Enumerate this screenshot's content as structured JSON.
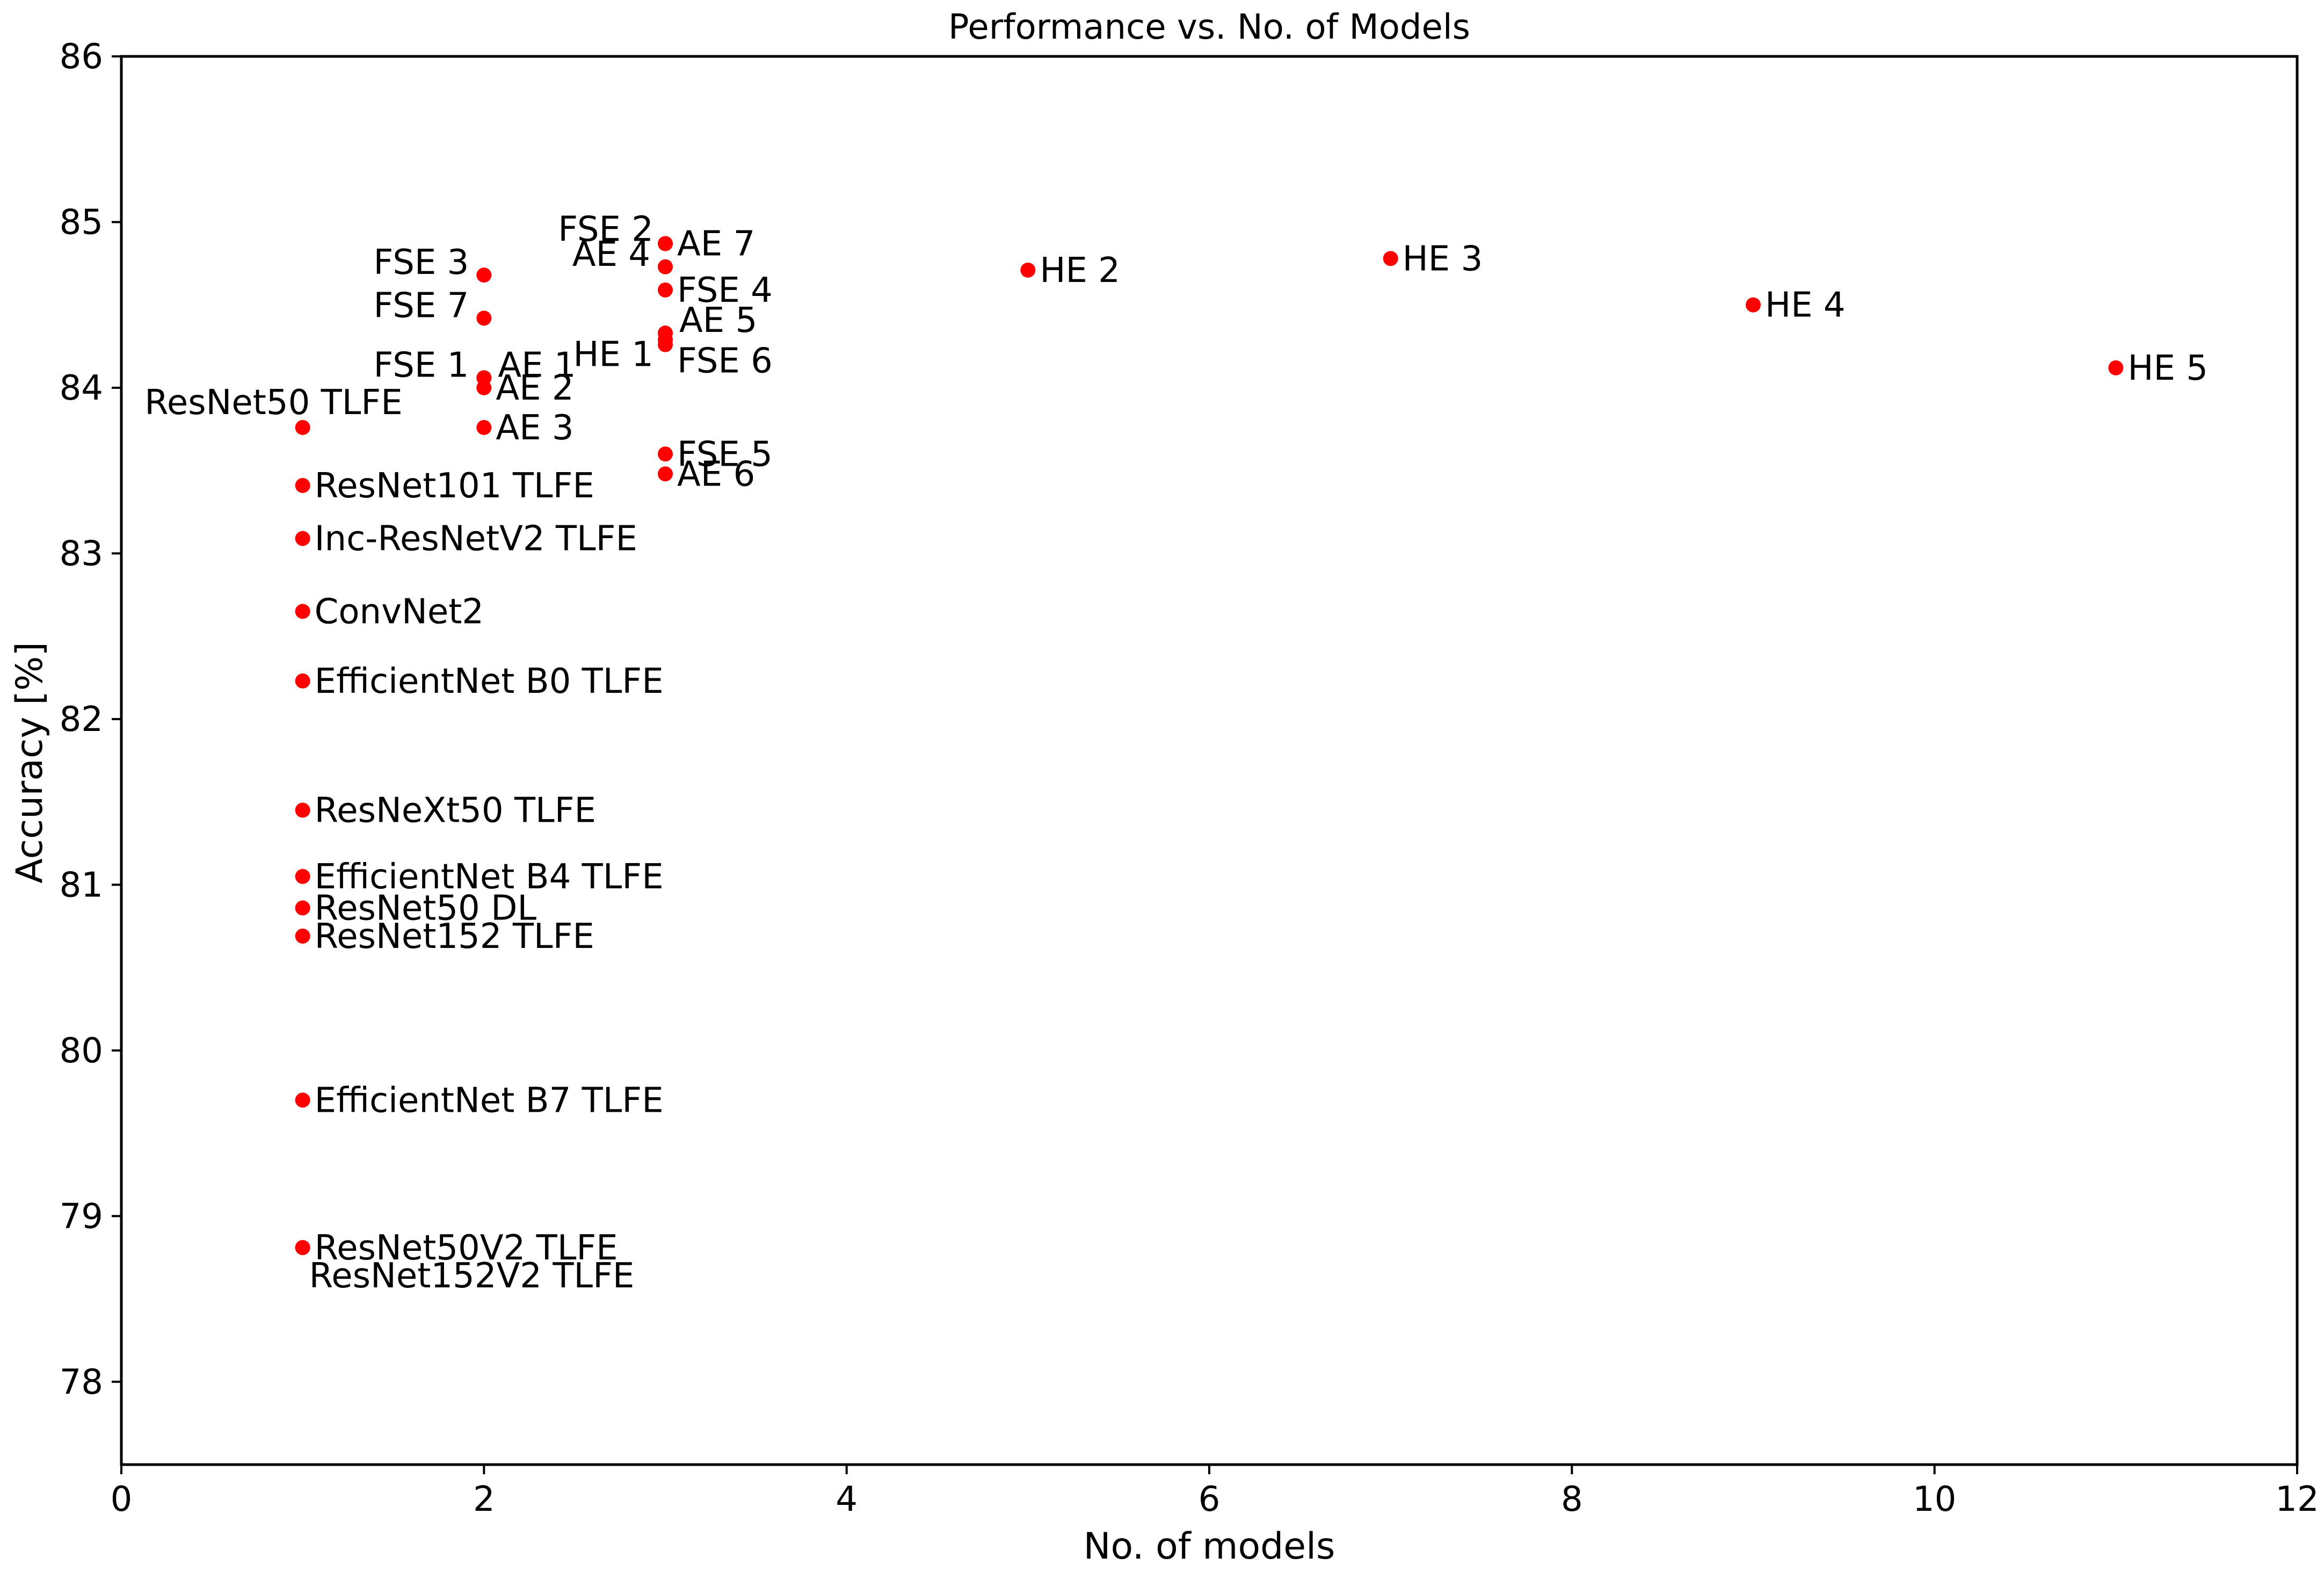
{
  "chart_data": {
    "type": "scatter",
    "title": "Performance vs. No. of Models",
    "xlabel": "No. of models",
    "ylabel": "Accuracy [%]",
    "xlim": [
      0,
      12
    ],
    "ylim": [
      77.5,
      86
    ],
    "xticks": [
      0,
      2,
      4,
      6,
      8,
      10,
      12
    ],
    "yticks": [
      78,
      79,
      80,
      81,
      82,
      83,
      84,
      85,
      86
    ],
    "grid": false,
    "marker_color": "#ff0000",
    "points": [
      {
        "label": "ResNet50 TLFE",
        "x": 1,
        "y": 83.76,
        "anchor": "left-above"
      },
      {
        "label": "ResNet101 TLFE",
        "x": 1,
        "y": 83.41,
        "anchor": "right"
      },
      {
        "label": "Inc-ResNetV2 TLFE",
        "x": 1,
        "y": 83.09,
        "anchor": "right"
      },
      {
        "label": "ConvNet2",
        "x": 1,
        "y": 82.65,
        "anchor": "right"
      },
      {
        "label": "EfficientNet B0 TLFE",
        "x": 1,
        "y": 82.23,
        "anchor": "right"
      },
      {
        "label": "ResNeXt50 TLFE",
        "x": 1,
        "y": 81.45,
        "anchor": "right"
      },
      {
        "label": "EfficientNet B4 TLFE",
        "x": 1,
        "y": 81.05,
        "anchor": "right"
      },
      {
        "label": "ResNet50 DL",
        "x": 1,
        "y": 80.86,
        "anchor": "right"
      },
      {
        "label": "ResNet152 TLFE",
        "x": 1,
        "y": 80.69,
        "anchor": "right"
      },
      {
        "label": "EfficientNet B7 TLFE",
        "x": 1,
        "y": 79.7,
        "anchor": "right"
      },
      {
        "label": "ResNet50V2 TLFE",
        "x": 1,
        "y": 78.81,
        "anchor": "right"
      },
      {
        "label": "ResNet152V2 TLFE",
        "x": 1,
        "y": 78.81,
        "anchor": "right-below"
      },
      {
        "label": "FSE 3",
        "x": 2,
        "y": 84.68,
        "anchor": "left"
      },
      {
        "label": "FSE 7",
        "x": 2,
        "y": 84.42,
        "anchor": "left"
      },
      {
        "label": "FSE 1",
        "x": 2,
        "y": 84.06,
        "anchor": "left"
      },
      {
        "label": "AE 1",
        "x": 2,
        "y": 84.06,
        "anchor": "right-up"
      },
      {
        "label": "AE 2",
        "x": 2,
        "y": 84.0,
        "anchor": "right"
      },
      {
        "label": "AE 3",
        "x": 2,
        "y": 83.76,
        "anchor": "right"
      },
      {
        "label": "FSE 2",
        "x": 3,
        "y": 84.87,
        "anchor": "left-up"
      },
      {
        "label": "AE 7",
        "x": 3,
        "y": 84.87,
        "anchor": "right"
      },
      {
        "label": "AE 4",
        "x": 3,
        "y": 84.73,
        "anchor": "left"
      },
      {
        "label": "FSE 4",
        "x": 3,
        "y": 84.59,
        "anchor": "right"
      },
      {
        "label": "AE 5",
        "x": 3,
        "y": 84.33,
        "anchor": "right-up"
      },
      {
        "label": "HE 1",
        "x": 3,
        "y": 84.29,
        "anchor": "left-down"
      },
      {
        "label": "FSE 6",
        "x": 3,
        "y": 84.26,
        "anchor": "right-down"
      },
      {
        "label": "FSE 5",
        "x": 3,
        "y": 83.6,
        "anchor": "right"
      },
      {
        "label": "AE 6",
        "x": 3,
        "y": 83.48,
        "anchor": "right"
      },
      {
        "label": "HE 2",
        "x": 5,
        "y": 84.71,
        "anchor": "right"
      },
      {
        "label": "HE 3",
        "x": 7,
        "y": 84.78,
        "anchor": "right"
      },
      {
        "label": "HE 4",
        "x": 9,
        "y": 84.5,
        "anchor": "right"
      },
      {
        "label": "HE 5",
        "x": 11,
        "y": 84.12,
        "anchor": "right"
      }
    ]
  }
}
